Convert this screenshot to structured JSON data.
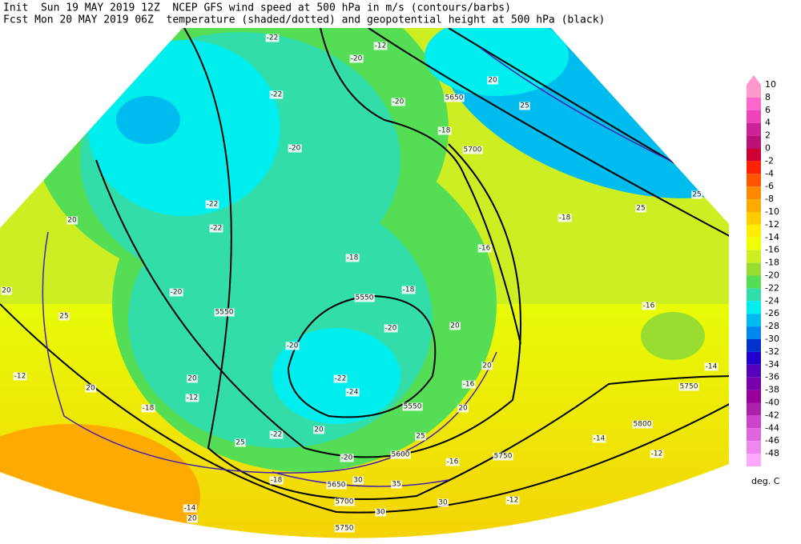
{
  "header": {
    "line1": "Init  Sun 19 MAY 2019 12Z  NCEP GFS wind speed at 500 hPa in m/s (contours/barbs)",
    "line2": "Fcst Mon 20 MAY 2019 06Z  temperature (shaded/dotted) and geopotential height at 500 hPa (black)"
  },
  "colorbar": {
    "unit": "deg. C",
    "levels": [
      10,
      8,
      6,
      4,
      2,
      0,
      -2,
      -4,
      -6,
      -8,
      -10,
      -12,
      -14,
      -16,
      -18,
      -20,
      -22,
      -24,
      -26,
      -28,
      -30,
      -32,
      -34,
      -36,
      -38,
      -40,
      -42,
      -44,
      -46,
      -48
    ],
    "colors": [
      "#ff99cc",
      "#ff66cc",
      "#ee44bb",
      "#cc2299",
      "#bb1177",
      "#cc0033",
      "#ff2200",
      "#ff5500",
      "#ff8800",
      "#ffaa00",
      "#ffcc00",
      "#ffee00",
      "#eeff00",
      "#ccee22",
      "#99dd33",
      "#55dd55",
      "#33ddaa",
      "#00eeee",
      "#00bbee",
      "#0088ee",
      "#0033cc",
      "#2200cc",
      "#5500bb",
      "#7700aa",
      "#990099",
      "#aa22aa",
      "#cc44cc",
      "#dd66dd",
      "#ee88ee",
      "#ffaaff"
    ]
  },
  "map": {
    "labels": [
      "-22",
      "-12",
      "-20",
      "-22",
      "-20",
      "5650",
      "20",
      "25",
      "-20",
      "-18",
      "5700",
      "-22",
      "-22",
      "-18",
      "25",
      "25",
      "20",
      "-16",
      "-18",
      "-20",
      "5550",
      "5550",
      "-18",
      "25",
      "20",
      "-20",
      "-16",
      "-20",
      "20",
      "-14",
      "20",
      "-12",
      "-22",
      "-24",
      "20",
      "-16",
      "-12",
      "5750",
      "5550",
      "-18",
      "20",
      "20",
      "-22",
      "25",
      "5800",
      "-14",
      "25",
      "5600",
      "-20",
      "-16",
      "5750",
      "-12",
      "-18",
      "30",
      "5650",
      "35",
      "5700",
      "30",
      "-12",
      "-14",
      "30",
      "20",
      "5750",
      "20"
    ]
  }
}
